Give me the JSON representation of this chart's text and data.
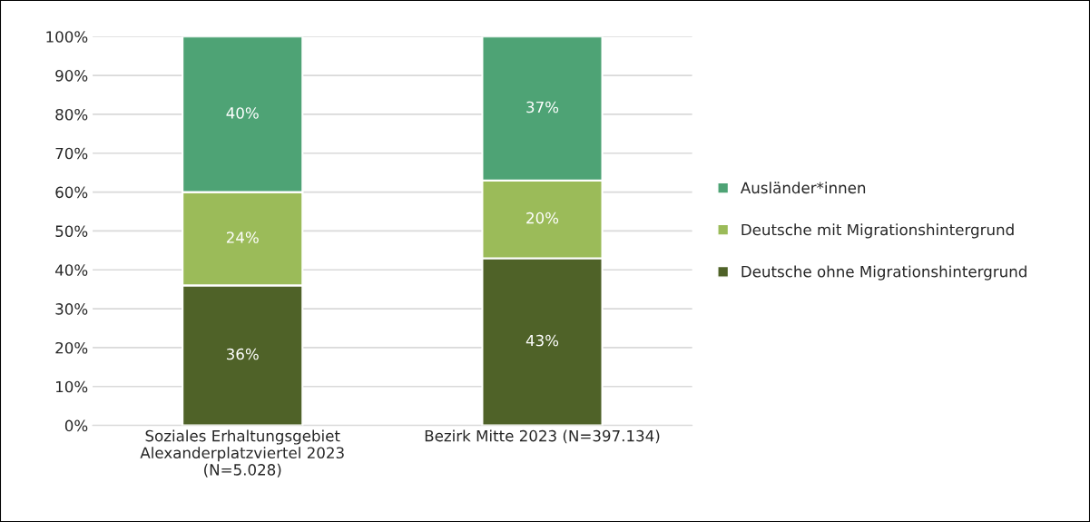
{
  "chart_data": {
    "type": "bar",
    "stacked": true,
    "categories": [
      "Soziales Erhaltungsgebiet Alexanderplatzviertel 2023 (N=5.028)",
      "Bezirk Mitte 2023 (N=397.134)"
    ],
    "series": [
      {
        "name": "Deutsche ohne Migrationshintergrund",
        "color": "#4f6228",
        "values": [
          36,
          43
        ],
        "value_labels": [
          "36%",
          "43%"
        ]
      },
      {
        "name": "Deutsche mit Migrationshintergrund",
        "color": "#9bbb59",
        "values": [
          24,
          20
        ],
        "value_labels": [
          "24%",
          "20%"
        ]
      },
      {
        "name": "Ausländer*innen",
        "color": "#4ea375",
        "values": [
          40,
          37
        ],
        "value_labels": [
          "40%",
          "37%"
        ]
      }
    ],
    "ylim": [
      0,
      100
    ],
    "yticks": [
      {
        "value": 0,
        "label": "0%"
      },
      {
        "value": 10,
        "label": "10%"
      },
      {
        "value": 20,
        "label": "20%"
      },
      {
        "value": 30,
        "label": "30%"
      },
      {
        "value": 40,
        "label": "40%"
      },
      {
        "value": 50,
        "label": "50%"
      },
      {
        "value": 60,
        "label": "60%"
      },
      {
        "value": 70,
        "label": "70%"
      },
      {
        "value": 80,
        "label": "80%"
      },
      {
        "value": 90,
        "label": "90%"
      },
      {
        "value": 100,
        "label": "100%"
      }
    ],
    "grid": "y",
    "legend": "right"
  }
}
